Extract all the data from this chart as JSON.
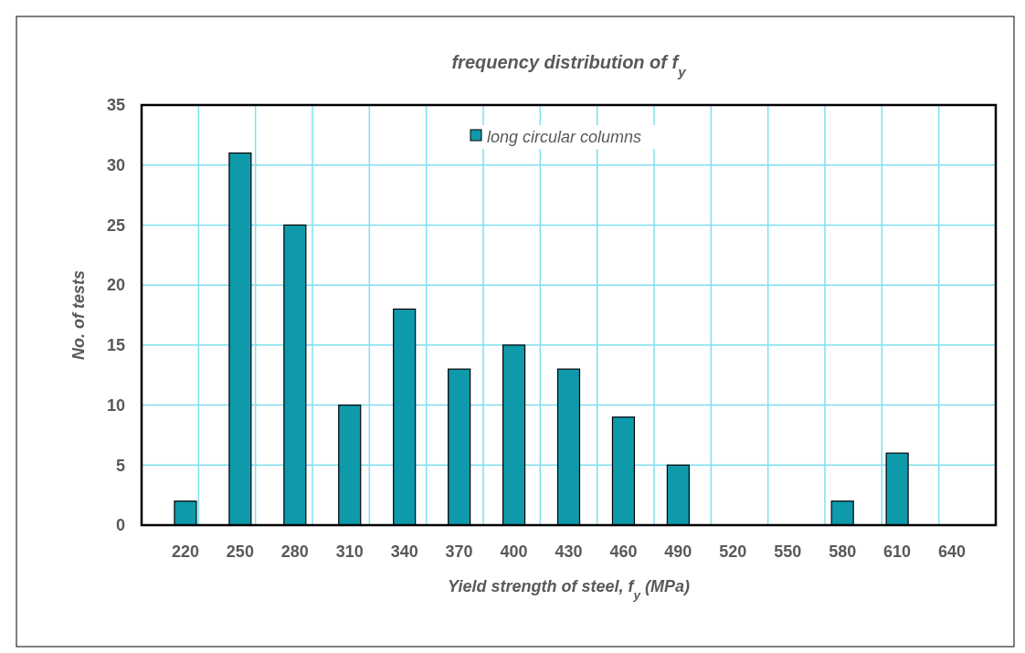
{
  "chart_data": {
    "type": "bar",
    "title": "frequency distribution of f$_{y}$",
    "xlabel": "Yield strength of steel, f$_{y}$ (MPa)",
    "ylabel": "No. of tests",
    "categories": [
      "220",
      "250",
      "280",
      "310",
      "340",
      "370",
      "400",
      "430",
      "460",
      "490",
      "520",
      "550",
      "580",
      "610",
      "640"
    ],
    "series": [
      {
        "name": "long circular columns",
        "color": "#0e9aab",
        "values": [
          2,
          31,
          25,
          10,
          18,
          13,
          15,
          13,
          9,
          5,
          0,
          0,
          2,
          6,
          0
        ]
      }
    ],
    "ylim": [
      0,
      35
    ],
    "yticks": [
      0,
      5,
      10,
      15,
      20,
      25,
      30,
      35
    ],
    "grid": true,
    "legend": "top"
  }
}
